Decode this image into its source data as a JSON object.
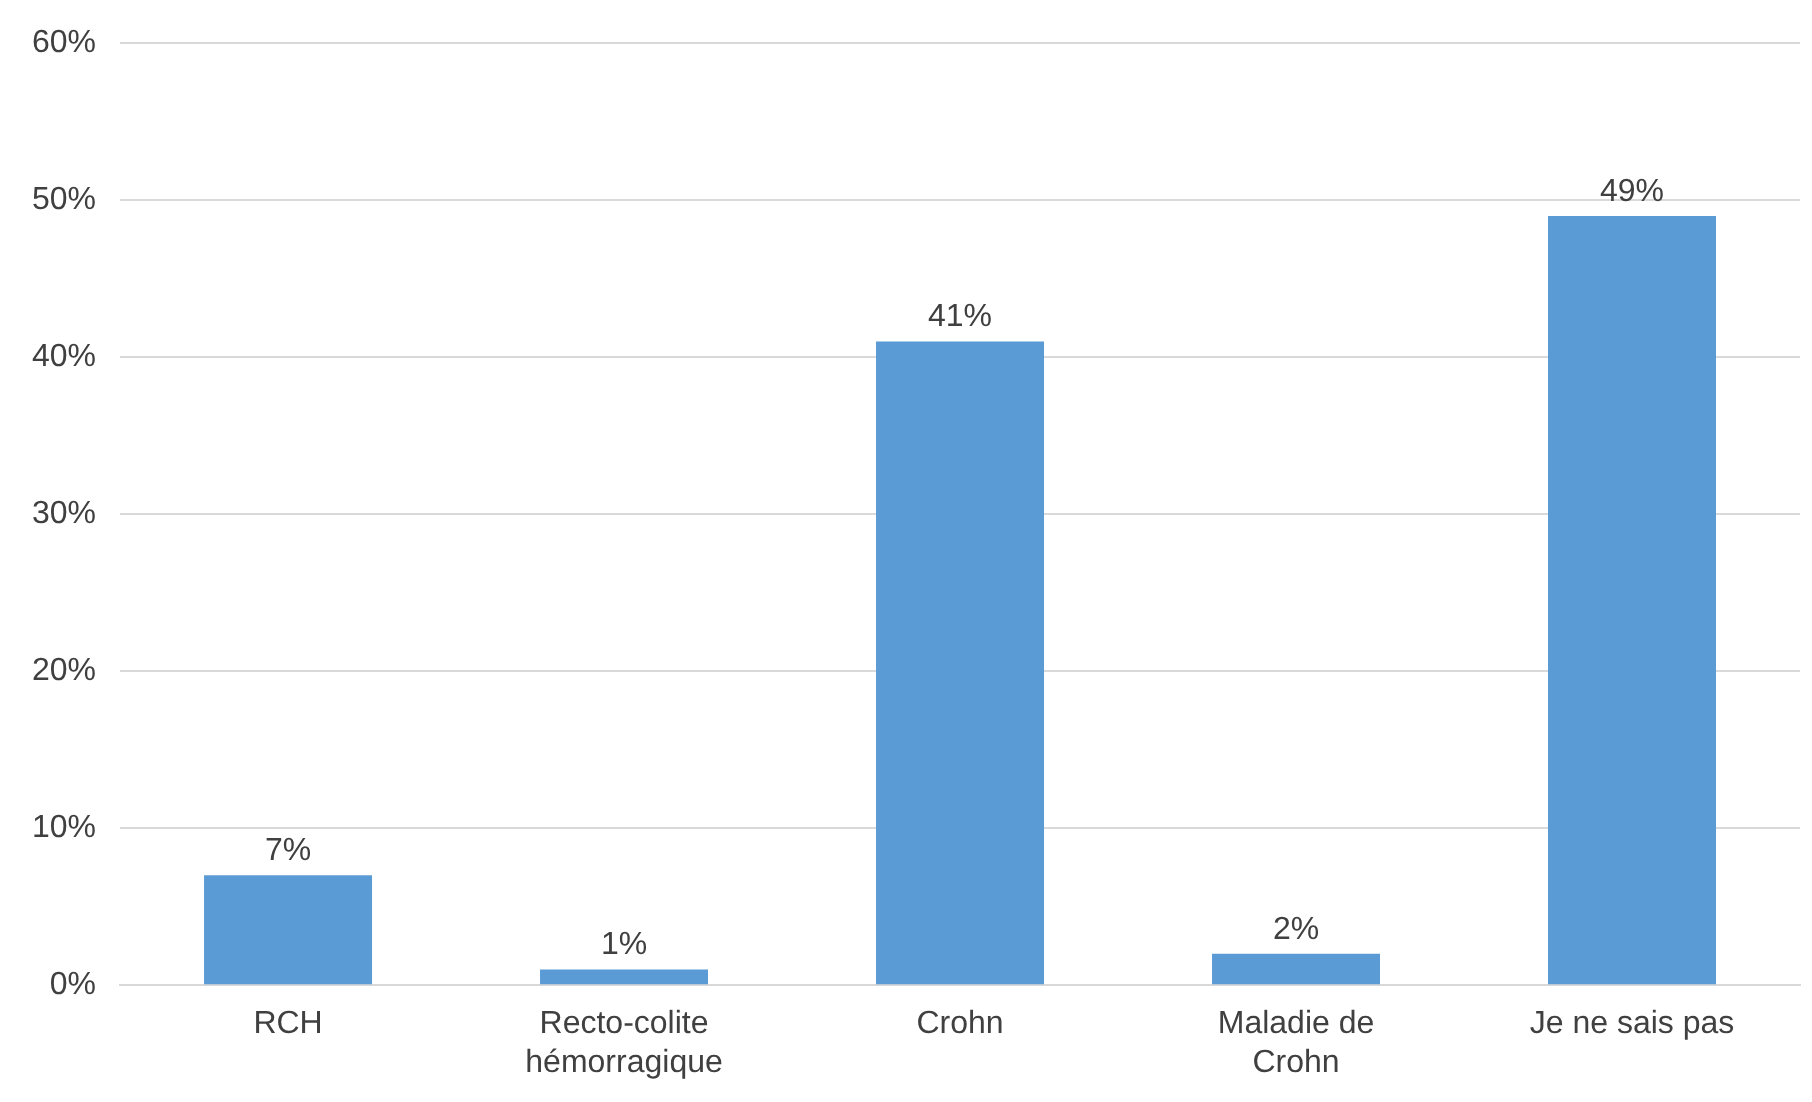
{
  "chart_data": {
    "type": "bar",
    "categories": [
      "RCH",
      "Recto-colite hémorragique",
      "Crohn",
      "Maladie de Crohn",
      "Je ne sais pas"
    ],
    "values": [
      7,
      1,
      41,
      2,
      49
    ],
    "value_labels": [
      "7%",
      "1%",
      "41%",
      "2%",
      "49%"
    ],
    "color": "#5b9bd5",
    "ylim": [
      0,
      60
    ],
    "yticks": [
      {
        "value": 0,
        "label": "0%"
      },
      {
        "value": 10,
        "label": "10%"
      },
      {
        "value": 20,
        "label": "20%"
      },
      {
        "value": 30,
        "label": "30%"
      },
      {
        "value": 40,
        "label": "40%"
      },
      {
        "value": 50,
        "label": "50%"
      },
      {
        "value": 60,
        "label": "60%"
      }
    ],
    "grid": "y",
    "legend": false
  }
}
